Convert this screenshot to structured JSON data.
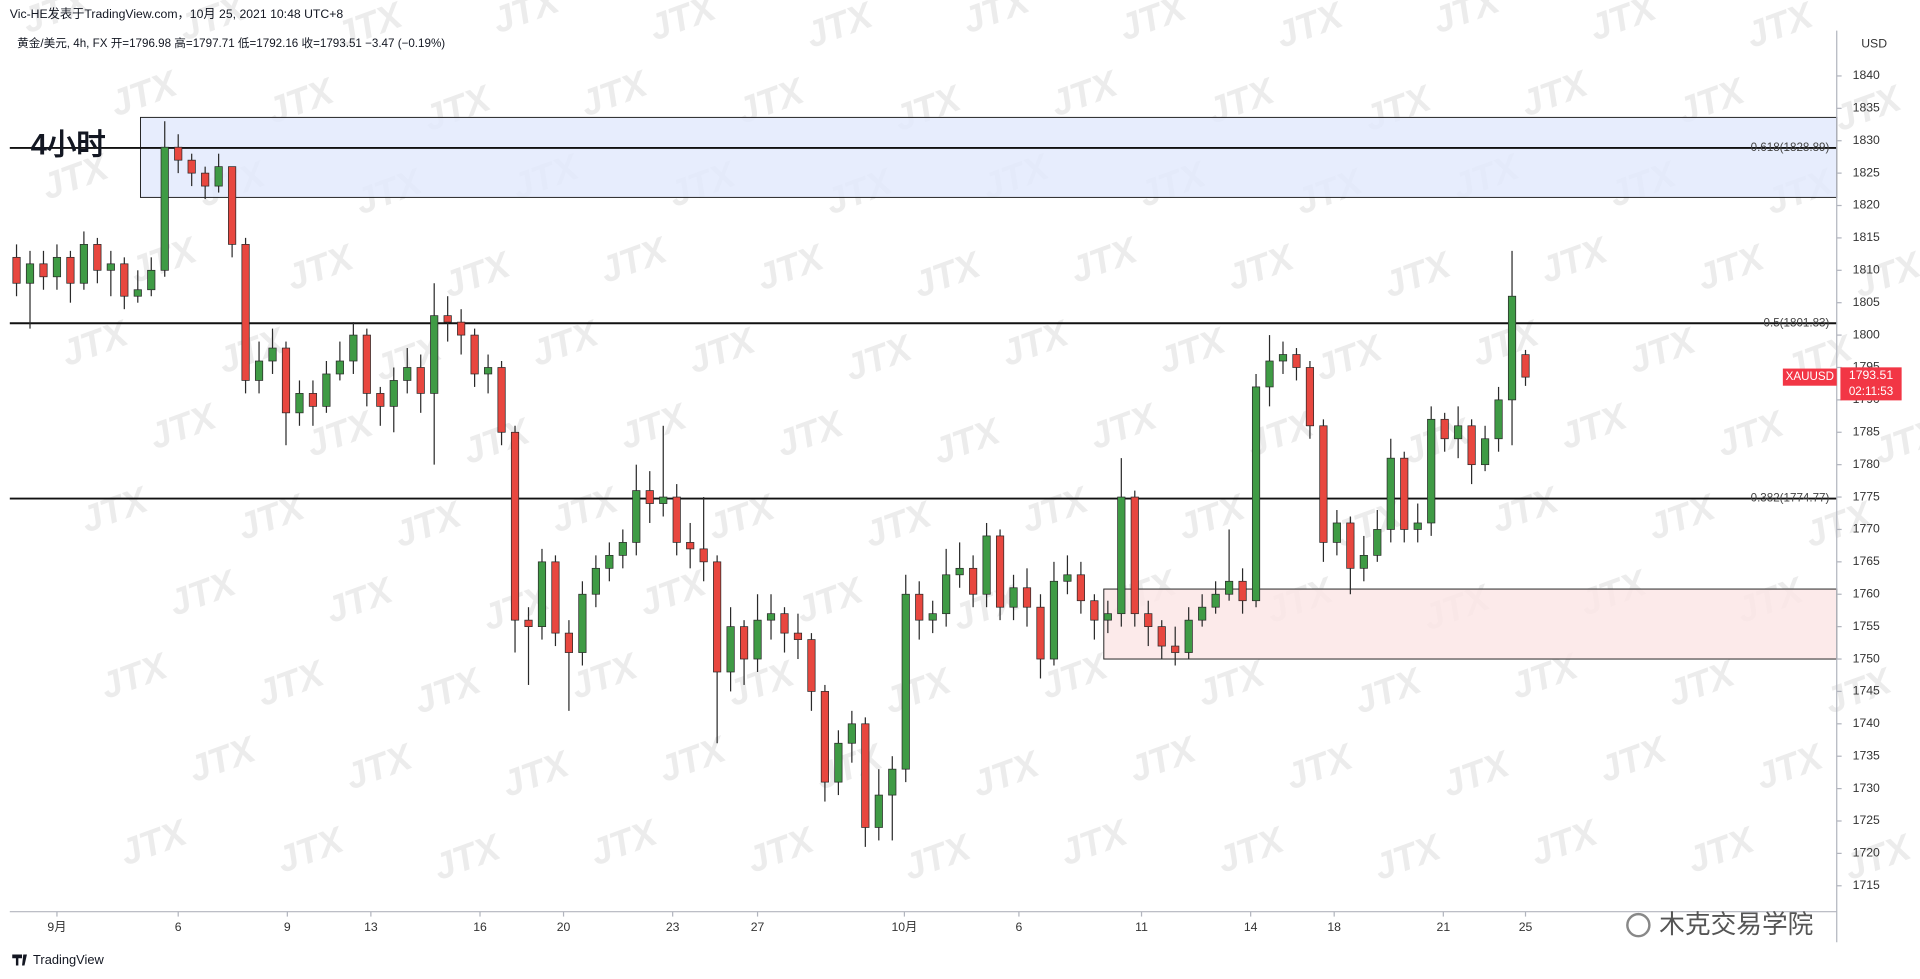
{
  "chart_data": {
    "type": "candlestick",
    "title": "Vic-HE发表于TradingView.com，10月 25, 2021 10:48 UTC+8",
    "subtitle": "黄金/美元, 4h, FX  开=1796.98  高=1797.71  低=1792.16  收=1793.51  −3.47 (−0.19%)",
    "annotation": "4小时",
    "currency": "USD",
    "symbol_tag": {
      "symbol": "XAUUSD",
      "price": "1793.51",
      "countdown": "02:11:53",
      "color": "#f23645"
    },
    "branding": "TradingView",
    "watermark": "JTX",
    "footer_watermark": "木克交易学院",
    "up_color": "#3f9b45",
    "down_color": "#e8473f",
    "grid": false,
    "xlim": [
      0,
      135.6
    ],
    "ylim": [
      1711,
      1847
    ],
    "yticks": [
      1715,
      1720,
      1725,
      1730,
      1735,
      1740,
      1745,
      1750,
      1755,
      1760,
      1765,
      1770,
      1775,
      1780,
      1785,
      1790,
      1795,
      1800,
      1805,
      1810,
      1815,
      1820,
      1825,
      1830,
      1835,
      1840
    ],
    "xticks": [
      {
        "value": 3.5,
        "label": "9月"
      },
      {
        "value": 12.5,
        "label": "6"
      },
      {
        "value": 20.6,
        "label": "9"
      },
      {
        "value": 26.8,
        "label": "13"
      },
      {
        "value": 34.9,
        "label": "16"
      },
      {
        "value": 41.1,
        "label": "20"
      },
      {
        "value": 49.2,
        "label": "23"
      },
      {
        "value": 55.5,
        "label": "27"
      },
      {
        "value": 66.4,
        "label": "10月"
      },
      {
        "value": 74.9,
        "label": "6"
      },
      {
        "value": 84,
        "label": "11"
      },
      {
        "value": 92.1,
        "label": "14"
      },
      {
        "value": 98.3,
        "label": "18"
      },
      {
        "value": 106.4,
        "label": "21"
      },
      {
        "value": 112.5,
        "label": "25"
      }
    ],
    "levels": [
      {
        "value": 1828.89,
        "label": "0.618(1828.89)"
      },
      {
        "value": 1801.83,
        "label": "0.5(1801.83)"
      },
      {
        "value": 1774.77,
        "label": "0.382(1774.77)"
      }
    ],
    "zones": [
      {
        "x_start": 9.7,
        "top": 1833.6,
        "bottom": 1821.25,
        "color": "#e3eafd",
        "stroke": "#222"
      },
      {
        "x_start": 81.2,
        "top": 1760.8,
        "bottom": 1750,
        "color": "#fbe6e6",
        "stroke": "#222"
      }
    ],
    "x": [
      0.5,
      1.5,
      2.5,
      3.5,
      4.5,
      5.5,
      6.5,
      7.5,
      8.5,
      9.5,
      10.5,
      11.5,
      12.5,
      13.5,
      14.5,
      15.5,
      16.5,
      17.5,
      18.5,
      19.5,
      20.5,
      21.5,
      22.5,
      23.5,
      24.5,
      25.5,
      26.5,
      27.5,
      28.5,
      29.5,
      30.5,
      31.5,
      32.5,
      33.5,
      34.5,
      35.5,
      36.5,
      37.5,
      38.5,
      39.5,
      40.5,
      41.5,
      42.5,
      43.5,
      44.5,
      45.5,
      46.5,
      47.5,
      48.5,
      49.5,
      50.5,
      51.5,
      52.5,
      53.5,
      54.5,
      55.5,
      56.5,
      57.5,
      58.5,
      59.5,
      60.5,
      61.5,
      62.5,
      63.5,
      64.5,
      65.5,
      66.5,
      67.5,
      68.5,
      69.5,
      70.5,
      71.5,
      72.5,
      73.5,
      74.5,
      75.5,
      76.5,
      77.5,
      78.5,
      79.5,
      80.5,
      81.5,
      82.5,
      83.5,
      84.5,
      85.5,
      86.5,
      87.5,
      88.5,
      89.5,
      90.5,
      91.5,
      92.5,
      93.5,
      94.5,
      95.5,
      96.5,
      97.5,
      98.5,
      99.5,
      100.5,
      101.5,
      102.5,
      103.5,
      104.5,
      105.5,
      106.5,
      107.5,
      108.5,
      109.5,
      110.5,
      111.5,
      112.5
    ],
    "open": [
      1812,
      1808,
      1811,
      1809,
      1812,
      1808,
      1814,
      1810,
      1811,
      1806,
      1807,
      1810,
      1829,
      1827,
      1825,
      1823,
      1826,
      1814,
      1793,
      1796,
      1798,
      1788,
      1791,
      1789,
      1794,
      1796,
      1800,
      1791,
      1789,
      1793,
      1795,
      1791,
      1803,
      1802,
      1800,
      1794,
      1795,
      1785,
      1756,
      1755,
      1765,
      1754,
      1751,
      1760,
      1764,
      1766,
      1768,
      1776,
      1774,
      1775,
      1768,
      1767,
      1765,
      1748,
      1755,
      1750,
      1756,
      1757,
      1754,
      1753,
      1745,
      1731,
      1737,
      1740,
      1724,
      1729,
      1733,
      1760,
      1756,
      1757,
      1763,
      1764,
      1760,
      1769,
      1758,
      1761,
      1758,
      1750,
      1762,
      1763,
      1759,
      1756,
      1757,
      1775,
      1757,
      1755,
      1752,
      1751,
      1756,
      1758,
      1760,
      1762,
      1759,
      1792,
      1796,
      1797,
      1795,
      1786,
      1768,
      1771,
      1764,
      1766,
      1770,
      1781,
      1770,
      1771,
      1787,
      1784,
      1786,
      1780,
      1784,
      1790,
      1796.98
    ],
    "high": [
      1814,
      1813,
      1813,
      1814,
      1813,
      1816,
      1815,
      1813,
      1812,
      1810,
      1812,
      1833,
      1831,
      1828,
      1826,
      1828,
      1826,
      1815,
      1799,
      1801,
      1799,
      1793,
      1793,
      1796,
      1799,
      1802,
      1801,
      1792,
      1795,
      1798,
      1797,
      1808,
      1806,
      1804,
      1801,
      1797,
      1796,
      1786,
      1758,
      1767,
      1766,
      1756,
      1762,
      1766,
      1768,
      1770,
      1780,
      1779,
      1786,
      1777,
      1771,
      1775,
      1766,
      1758,
      1756,
      1760,
      1760,
      1758,
      1757,
      1754,
      1746,
      1739,
      1742,
      1741,
      1733,
      1735,
      1763,
      1762,
      1759,
      1767,
      1768,
      1766,
      1771,
      1770,
      1763,
      1764,
      1760,
      1765,
      1766,
      1765,
      1760,
      1759,
      1781,
      1776,
      1759,
      1756,
      1755,
      1758,
      1760,
      1762,
      1770,
      1764,
      1794,
      1800,
      1799,
      1798,
      1796,
      1787,
      1773,
      1772,
      1769,
      1773,
      1784,
      1782,
      1774,
      1789,
      1788,
      1789,
      1787,
      1786,
      1792,
      1813,
      1797.71
    ],
    "low": [
      1806,
      1801,
      1807,
      1807,
      1805,
      1807,
      1808,
      1806,
      1804,
      1805,
      1806,
      1809,
      1825,
      1823,
      1821,
      1822,
      1812,
      1791,
      1791,
      1794,
      1783,
      1786,
      1786,
      1788,
      1793,
      1794,
      1789,
      1786,
      1785,
      1791,
      1788,
      1780,
      1799,
      1797,
      1792,
      1791,
      1783,
      1751,
      1746,
      1753,
      1752,
      1742,
      1749,
      1758,
      1762,
      1764,
      1766,
      1771,
      1772,
      1766,
      1764,
      1762,
      1737,
      1745,
      1746,
      1748,
      1753,
      1751,
      1750,
      1742,
      1728,
      1729,
      1734,
      1721,
      1722,
      1722,
      1731,
      1753,
      1754,
      1755,
      1761,
      1758,
      1758,
      1756,
      1756,
      1755,
      1747,
      1749,
      1760,
      1757,
      1753,
      1754,
      1755,
      1755,
      1752,
      1750,
      1749,
      1750,
      1755,
      1757,
      1759,
      1757,
      1758,
      1789,
      1794,
      1793,
      1784,
      1765,
      1766,
      1760,
      1762,
      1765,
      1768,
      1768,
      1768,
      1769,
      1782,
      1781,
      1777,
      1779,
      1782,
      1783,
      1792.16
    ],
    "close": [
      1808,
      1811,
      1809,
      1812,
      1808,
      1814,
      1810,
      1811,
      1806,
      1807,
      1810,
      1829,
      1827,
      1825,
      1823,
      1826,
      1814,
      1793,
      1796,
      1798,
      1788,
      1791,
      1789,
      1794,
      1796,
      1800,
      1791,
      1789,
      1793,
      1795,
      1791,
      1803,
      1802,
      1800,
      1794,
      1795,
      1785,
      1756,
      1755,
      1765,
      1754,
      1751,
      1760,
      1764,
      1766,
      1768,
      1776,
      1774,
      1775,
      1768,
      1767,
      1765,
      1748,
      1755,
      1750,
      1756,
      1757,
      1754,
      1753,
      1745,
      1731,
      1737,
      1740,
      1724,
      1729,
      1733,
      1760,
      1756,
      1757,
      1763,
      1764,
      1760,
      1769,
      1758,
      1761,
      1758,
      1750,
      1762,
      1763,
      1759,
      1756,
      1757,
      1775,
      1757,
      1755,
      1752,
      1751,
      1756,
      1758,
      1760,
      1762,
      1759,
      1792,
      1796,
      1797,
      1795,
      1786,
      1768,
      1771,
      1764,
      1766,
      1770,
      1781,
      1770,
      1771,
      1787,
      1784,
      1786,
      1780,
      1784,
      1790,
      1806,
      1793.51
    ]
  }
}
